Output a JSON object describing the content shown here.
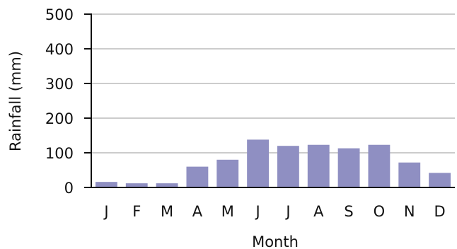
{
  "chart_data": {
    "type": "bar",
    "title": "",
    "xlabel": "Month",
    "ylabel": "Rainfall (mm)",
    "categories": [
      "J",
      "F",
      "M",
      "A",
      "M",
      "J",
      "J",
      "A",
      "S",
      "O",
      "N",
      "D"
    ],
    "values": [
      16,
      12,
      12,
      60,
      80,
      138,
      120,
      123,
      113,
      123,
      72,
      42
    ],
    "ylim": [
      0,
      500
    ],
    "yticks": [
      "0",
      "100",
      "200",
      "300",
      "400",
      "500"
    ],
    "grid": true,
    "legend": "none",
    "colors": {
      "bar": "#8f8fc2",
      "grid": "#9a9a9a",
      "axis": "#111111"
    }
  }
}
